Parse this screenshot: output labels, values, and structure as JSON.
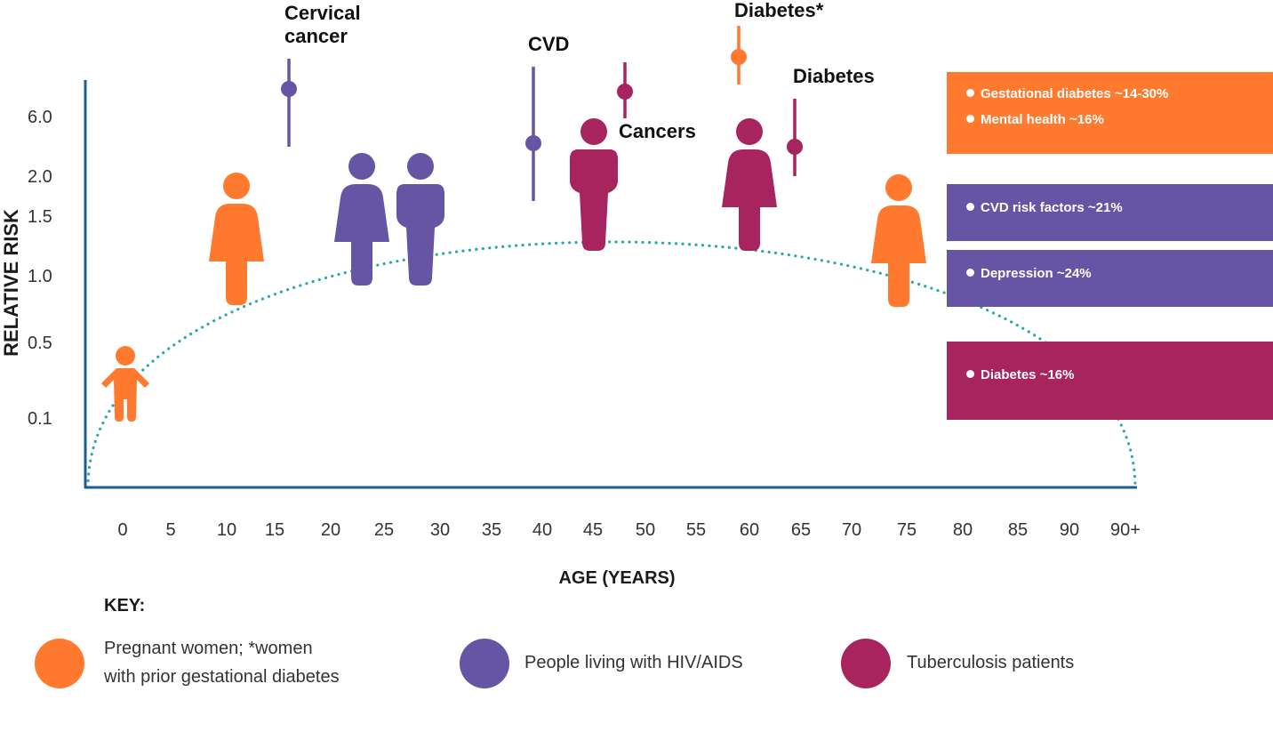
{
  "colors": {
    "pregnant": "#ff7a2f",
    "hiv": "#6655a5",
    "tb": "#a8245e",
    "axis": "#1d5b9a",
    "curve": "#2aa9a9"
  },
  "chart_data": {
    "type": "scatter",
    "title": "",
    "xlabel": "AGE (YEARS)",
    "ylabel": "RELATIVE RISK",
    "x_ticks": [
      "0",
      "5",
      "10",
      "15",
      "20",
      "25",
      "30",
      "35",
      "40",
      "45",
      "50",
      "55",
      "60",
      "65",
      "70",
      "75",
      "80",
      "85",
      "90",
      "90+"
    ],
    "y_ticks": [
      "6.0",
      "2.0",
      "1.5",
      "1.0",
      "0.5",
      "0.1"
    ],
    "grid": false,
    "figures": [
      {
        "group": "pregnant",
        "kind": "child",
        "age": 0
      },
      {
        "group": "pregnant",
        "kind": "woman",
        "age": 10
      },
      {
        "group": "hiv",
        "kind": "woman",
        "age": 22
      },
      {
        "group": "hiv",
        "kind": "man",
        "age": 28
      },
      {
        "group": "tb",
        "kind": "man",
        "age": 45
      },
      {
        "group": "tb",
        "kind": "woman",
        "age": 60
      },
      {
        "group": "pregnant",
        "kind": "woman",
        "age": 75
      }
    ],
    "risk_markers": [
      {
        "label": "Cervical\ncancer",
        "group": "hiv",
        "age": 16
      },
      {
        "label": "CVD",
        "group": "hiv",
        "age": 39
      },
      {
        "label": "Cancers",
        "group": "tb",
        "age": 48
      },
      {
        "label": "Diabetes*",
        "group": "pregnant",
        "age": 59
      },
      {
        "label": "Diabetes",
        "group": "tb",
        "age": 64
      }
    ],
    "prevalence_boxes": [
      {
        "group": "pregnant",
        "items": [
          "Gestational diabetes ~14-30%",
          "Mental health ~16%"
        ]
      },
      {
        "group": "hiv",
        "items": [
          "CVD risk factors ~21%"
        ]
      },
      {
        "group": "hiv",
        "items": [
          "Depression ~24%"
        ]
      },
      {
        "group": "tb",
        "items": [
          "Diabetes ~16%"
        ]
      }
    ]
  },
  "key": {
    "title": "KEY:",
    "items": [
      {
        "group": "pregnant",
        "label": "Pregnant women; *women\nwith prior gestational diabetes"
      },
      {
        "group": "hiv",
        "label": "People living with HIV/AIDS"
      },
      {
        "group": "tb",
        "label": "Tuberculosis patients"
      }
    ]
  }
}
